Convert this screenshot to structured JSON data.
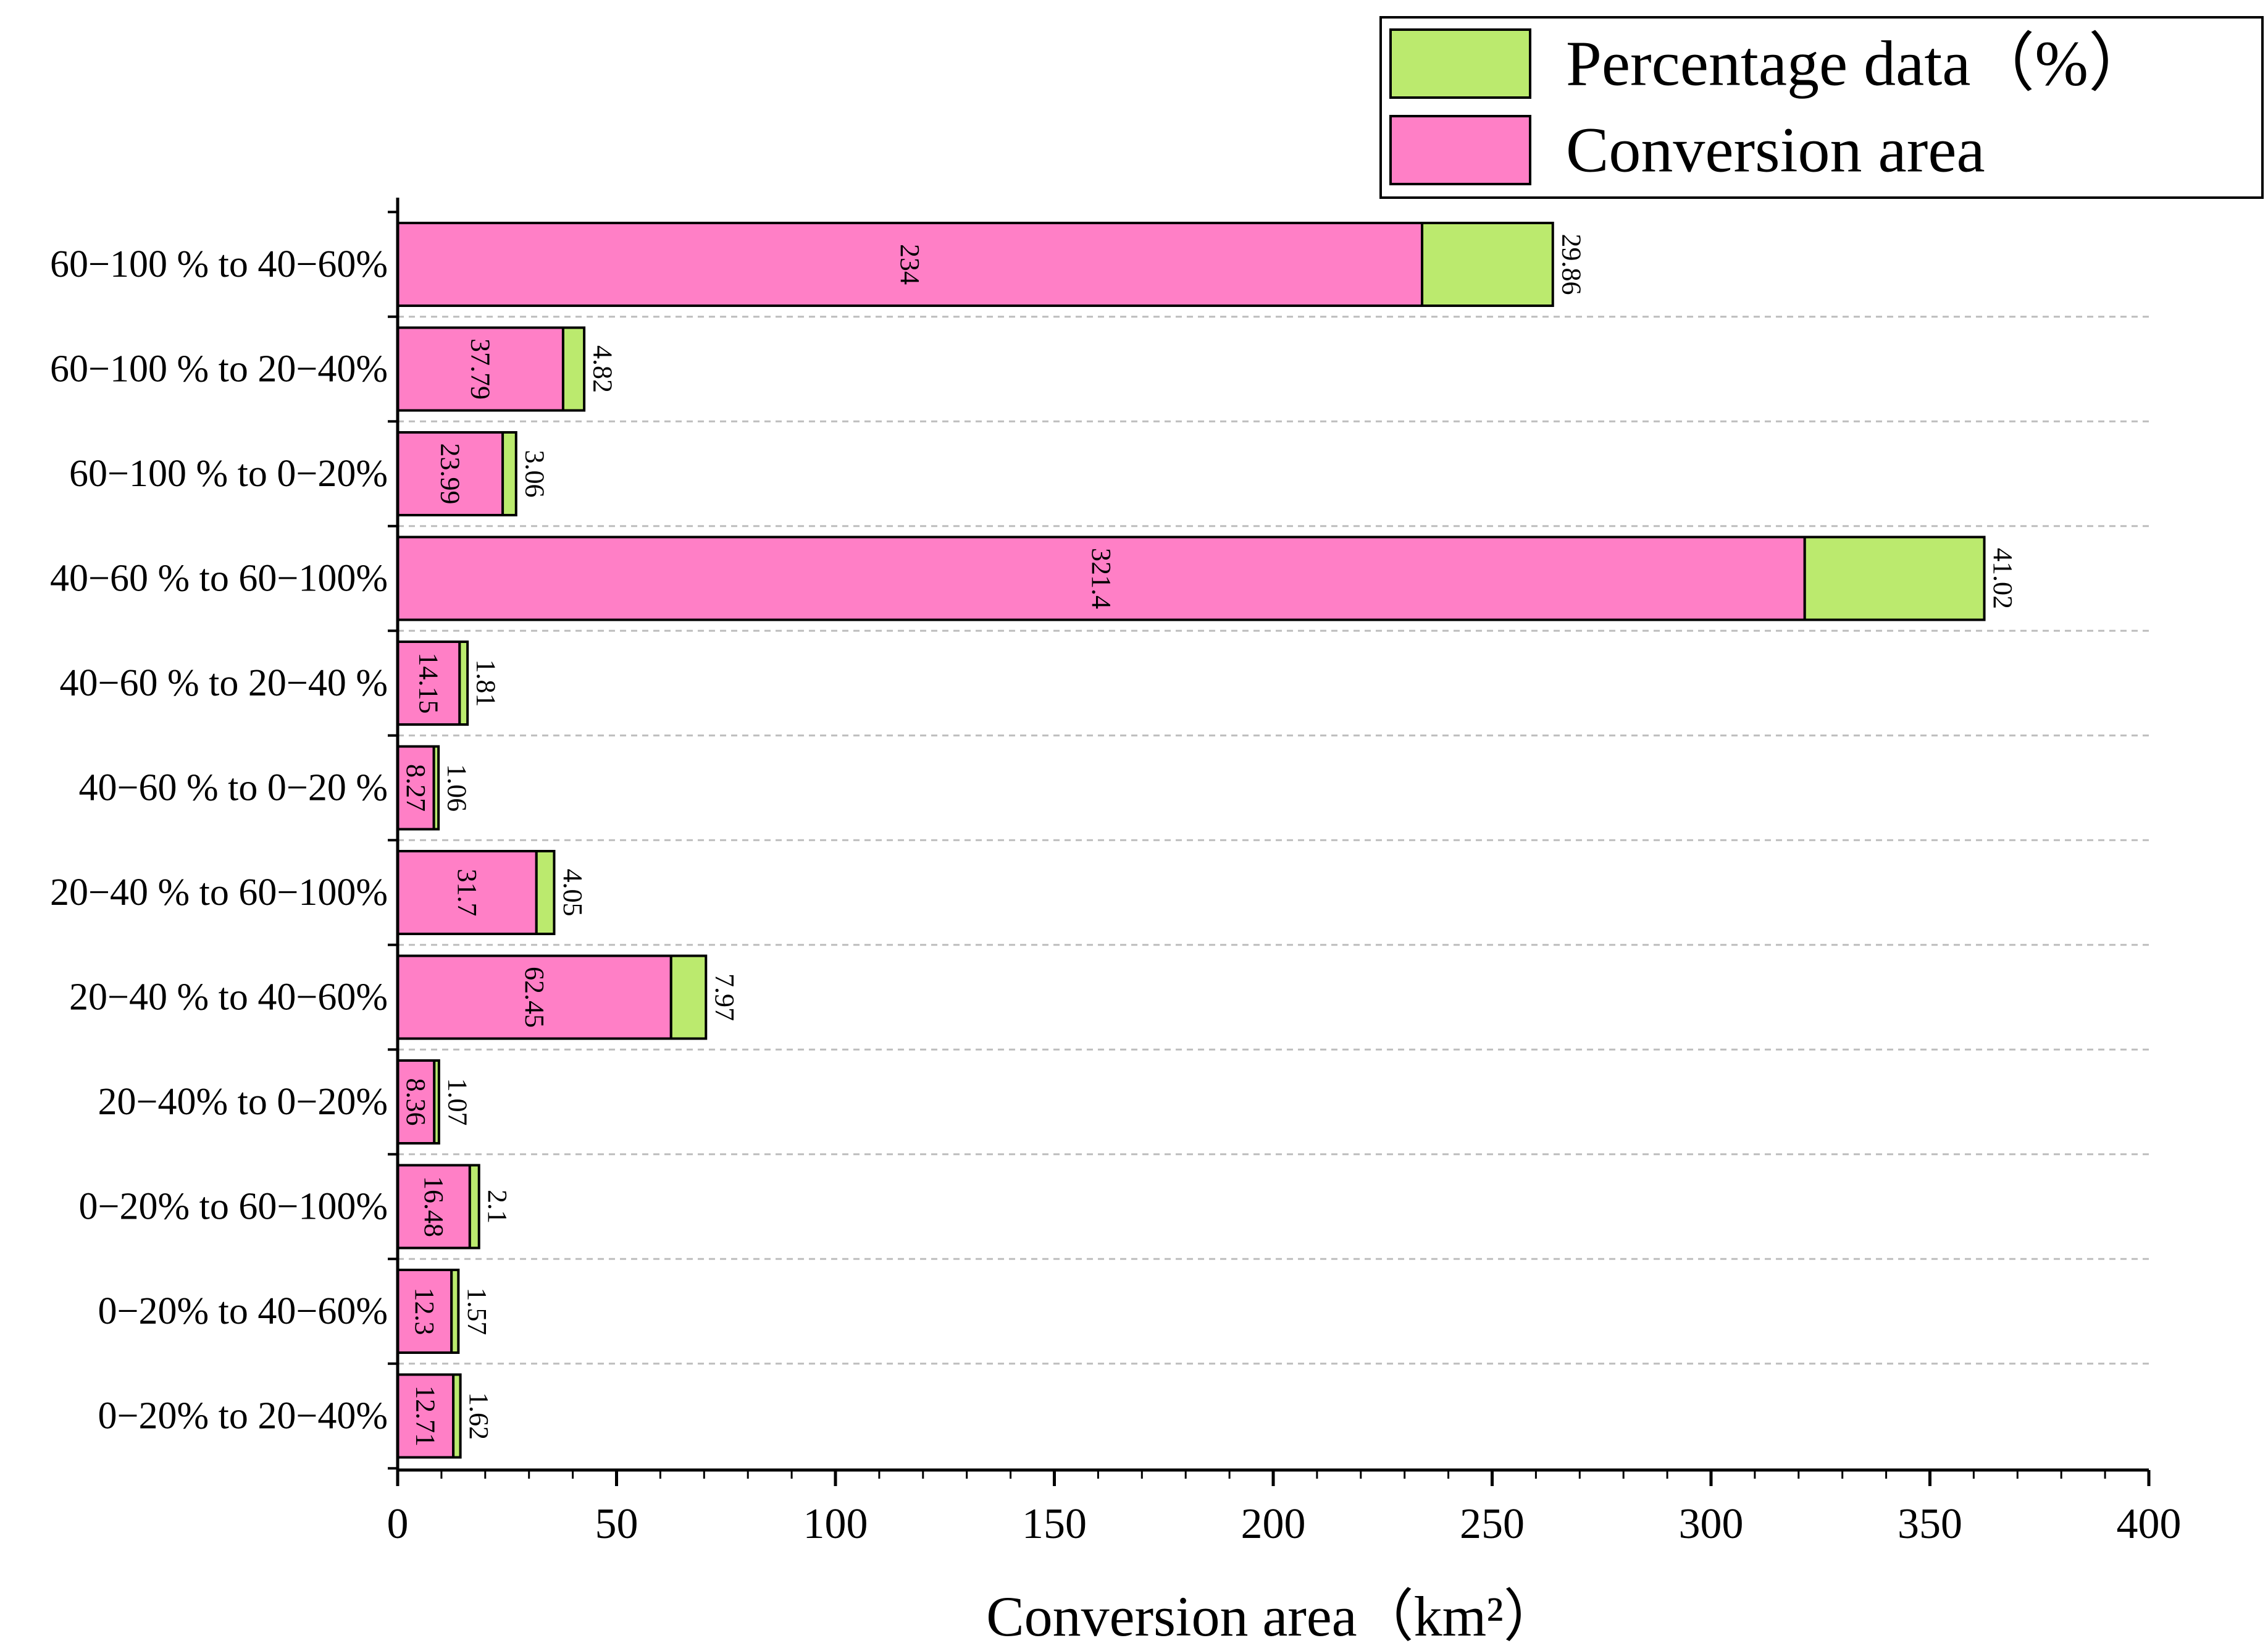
{
  "chart_data": {
    "type": "bar",
    "orientation": "horizontal",
    "stacked": true,
    "title": "",
    "xlabel": "Conversion area（km²）",
    "ylabel": "",
    "xlim": [
      0,
      400
    ],
    "x_ticks": [
      0,
      50,
      100,
      150,
      200,
      250,
      300,
      350,
      400
    ],
    "categories": [
      "60−100 % to 40−60%",
      "60−100 % to 20−40%",
      "60−100 % to 0−20%",
      "40−60 % to 60−100%",
      "40−60 % to 20−40 %",
      "40−60 % to 0−20 %",
      "20−40 % to 60−100%",
      "20−40 % to 40−60%",
      "20−40% to 0−20%",
      "0−20% to 60−100%",
      "0−20% to 40−60%",
      "0−20% to 20−40%"
    ],
    "series": [
      {
        "name": "Conversion area",
        "color": "#ff7fc6",
        "values": [
          234,
          37.79,
          23.99,
          321.4,
          14.15,
          8.27,
          31.7,
          62.45,
          8.36,
          16.48,
          12.3,
          12.71
        ],
        "labels": [
          "234",
          "37.79",
          "23.99",
          "321.4",
          "14.15",
          "8.27",
          "31.7",
          "62.45",
          "8.36",
          "16.48",
          "12.3",
          "12.71"
        ]
      },
      {
        "name": "Percentage data（%）",
        "color": "#bbea6e",
        "values": [
          29.86,
          4.82,
          3.06,
          41.02,
          1.81,
          1.06,
          4.05,
          7.97,
          1.07,
          2.1,
          1.57,
          1.62
        ],
        "labels": [
          "29.86",
          "4.82",
          "3.06",
          "41.02",
          "1.81",
          "1.06",
          "4.05",
          "7.97",
          "1.07",
          "2.1",
          "1.57",
          "1.62"
        ]
      }
    ],
    "legend": {
      "position": "top-right",
      "entries": [
        {
          "label": "Percentage data（%）",
          "color": "#bbea6e"
        },
        {
          "label": "Conversion area",
          "color": "#ff7fc6"
        }
      ]
    },
    "grid": {
      "horizontal": true,
      "style": "dashed"
    }
  }
}
